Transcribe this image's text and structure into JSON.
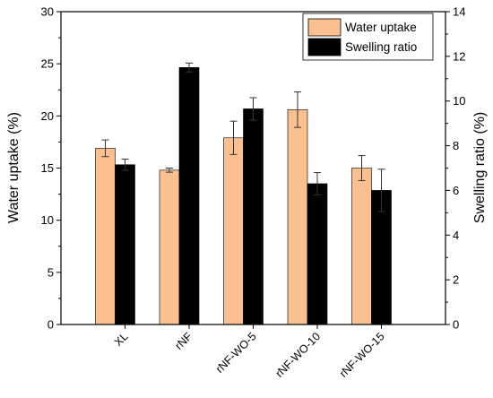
{
  "chart_data": {
    "type": "bar",
    "categories": [
      "XL",
      "rNF",
      "rNF-WO-5",
      "rNF-WO-10",
      "rNF-WO-15"
    ],
    "series": [
      {
        "name": "Water uptake",
        "axis": "left",
        "color": "#FAC090",
        "values": [
          16.9,
          14.8,
          17.9,
          20.6,
          15.0
        ],
        "errors": [
          0.8,
          0.2,
          1.6,
          1.7,
          1.2
        ]
      },
      {
        "name": "Swelling ratio",
        "axis": "right",
        "color": "#000000",
        "values": [
          7.15,
          11.5,
          9.65,
          6.3,
          6.0
        ],
        "errors": [
          0.25,
          0.2,
          0.5,
          0.5,
          0.95
        ]
      }
    ],
    "ylabel": "Water uptake (%)",
    "ylim": [
      0,
      30
    ],
    "yticks": [
      0,
      5,
      10,
      15,
      20,
      25,
      30
    ],
    "y2label": "Swelling ratio (%)",
    "y2lim": [
      0,
      14
    ],
    "y2ticks": [
      0,
      2,
      4,
      6,
      8,
      10,
      12,
      14
    ],
    "xlabel": "",
    "grid": false,
    "legend_position": "top-right"
  }
}
